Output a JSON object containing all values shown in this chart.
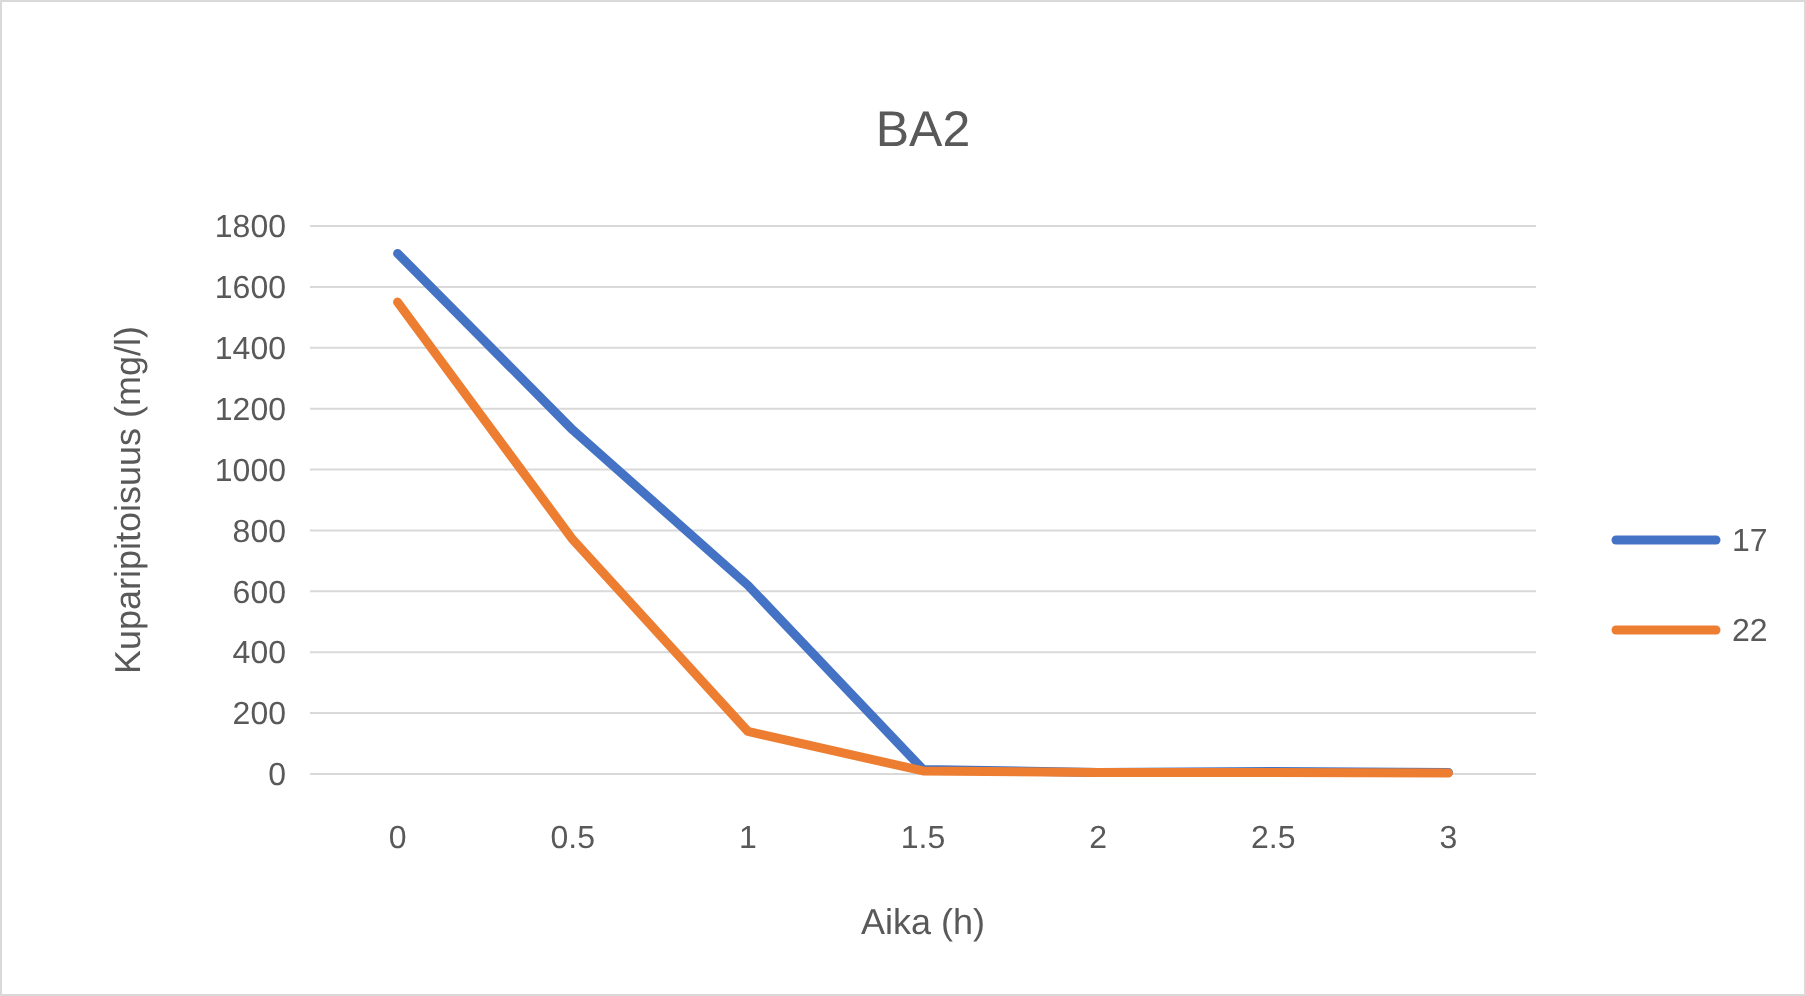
{
  "chart_data": {
    "type": "line",
    "title": "BA2",
    "xlabel": "Aika (h)",
    "ylabel": "Kuparipitoisuus (mg/l)",
    "categories": [
      "0",
      "0.5",
      "1",
      "1.5",
      "2",
      "2.5",
      "3"
    ],
    "series": [
      {
        "name": "17",
        "color": "#4472c4",
        "values": [
          1710,
          1130,
          620,
          15,
          5,
          8,
          5
        ]
      },
      {
        "name": "22",
        "color": "#ed7d31",
        "values": [
          1550,
          770,
          140,
          10,
          5,
          5,
          3
        ]
      }
    ],
    "ylim": [
      0,
      1800
    ],
    "yticks": [
      0,
      200,
      400,
      600,
      800,
      1000,
      1200,
      1400,
      1600,
      1800
    ],
    "grid": "y",
    "legend": "right",
    "marker": "none",
    "line_style": "solid"
  }
}
